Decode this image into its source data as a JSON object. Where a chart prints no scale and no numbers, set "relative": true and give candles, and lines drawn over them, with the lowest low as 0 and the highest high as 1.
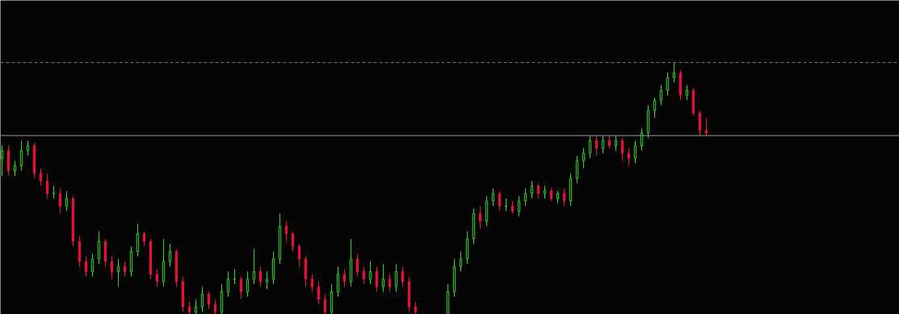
{
  "chart_data": {
    "type": "candlestick",
    "relative": true,
    "grid": false,
    "categories": [
      null,
      null,
      null,
      null,
      null,
      null,
      null,
      null,
      null,
      null,
      null,
      null,
      null,
      null,
      null,
      null,
      null,
      null,
      null,
      null,
      null,
      null,
      null,
      null,
      null,
      null,
      null,
      null,
      null,
      null,
      null,
      null,
      null,
      null,
      null,
      null,
      null,
      null,
      null,
      null,
      null,
      null,
      null,
      null,
      null,
      null,
      null,
      null,
      null,
      null,
      null,
      null,
      null,
      null,
      null,
      null,
      null,
      null,
      null,
      null,
      null,
      null,
      null,
      null,
      null,
      null,
      null,
      null,
      null,
      null,
      null,
      null,
      null,
      null,
      null,
      null,
      null,
      null,
      null,
      null,
      null,
      null,
      null,
      null,
      null,
      null,
      null,
      null,
      null,
      null,
      null,
      null,
      null,
      null,
      null,
      null,
      null,
      null,
      null,
      null,
      null,
      null,
      null,
      null,
      null,
      null,
      null,
      null,
      null,
      null
    ],
    "ohlc": [
      [
        0.62,
        0.67,
        0.55,
        0.65
      ],
      [
        0.65,
        0.67,
        0.55,
        0.57
      ],
      [
        0.57,
        0.61,
        0.55,
        0.59
      ],
      [
        0.59,
        0.69,
        0.57,
        0.65
      ],
      [
        0.65,
        0.69,
        0.63,
        0.67
      ],
      [
        0.67,
        0.68,
        0.54,
        0.56
      ],
      [
        0.56,
        0.58,
        0.51,
        0.53
      ],
      [
        0.53,
        0.56,
        0.46,
        0.48
      ],
      [
        0.48,
        0.51,
        0.46,
        0.48
      ],
      [
        0.48,
        0.5,
        0.4,
        0.43
      ],
      [
        0.43,
        0.49,
        0.41,
        0.46
      ],
      [
        0.46,
        0.47,
        0.27,
        0.29
      ],
      [
        0.29,
        0.31,
        0.19,
        0.21
      ],
      [
        0.21,
        0.23,
        0.15,
        0.17
      ],
      [
        0.17,
        0.24,
        0.15,
        0.22
      ],
      [
        0.22,
        0.33,
        0.2,
        0.29
      ],
      [
        0.29,
        0.3,
        0.19,
        0.21
      ],
      [
        0.21,
        0.23,
        0.14,
        0.17
      ],
      [
        0.17,
        0.22,
        0.11,
        0.19
      ],
      [
        0.19,
        0.21,
        0.15,
        0.17
      ],
      [
        0.17,
        0.27,
        0.15,
        0.25
      ],
      [
        0.25,
        0.36,
        0.23,
        0.32
      ],
      [
        0.32,
        0.33,
        0.27,
        0.29
      ],
      [
        0.29,
        0.3,
        0.14,
        0.16
      ],
      [
        0.16,
        0.18,
        0.11,
        0.13
      ],
      [
        0.13,
        0.3,
        0.11,
        0.21
      ],
      [
        0.21,
        0.28,
        0.19,
        0.25
      ],
      [
        0.25,
        0.26,
        0.11,
        0.13
      ],
      [
        0.13,
        0.15,
        0.01,
        0.03
      ],
      [
        0.03,
        0.05,
        0.0,
        0.01
      ],
      [
        0.01,
        0.06,
        0.0,
        0.03
      ],
      [
        0.03,
        0.11,
        0.01,
        0.08
      ],
      [
        0.08,
        0.09,
        0.02,
        0.04
      ],
      [
        0.04,
        0.06,
        0.0,
        0.01
      ],
      [
        0.01,
        0.12,
        0.0,
        0.09
      ],
      [
        0.09,
        0.17,
        0.07,
        0.14
      ],
      [
        0.14,
        0.18,
        0.12,
        0.14
      ],
      [
        0.14,
        0.15,
        0.06,
        0.09
      ],
      [
        0.09,
        0.17,
        0.07,
        0.14
      ],
      [
        0.14,
        0.26,
        0.12,
        0.17
      ],
      [
        0.17,
        0.19,
        0.11,
        0.13
      ],
      [
        0.13,
        0.17,
        0.1,
        0.14
      ],
      [
        0.14,
        0.25,
        0.12,
        0.22
      ],
      [
        0.22,
        0.4,
        0.2,
        0.35
      ],
      [
        0.35,
        0.37,
        0.29,
        0.32
      ],
      [
        0.32,
        0.33,
        0.25,
        0.27
      ],
      [
        0.27,
        0.28,
        0.19,
        0.22
      ],
      [
        0.22,
        0.23,
        0.11,
        0.14
      ],
      [
        0.14,
        0.16,
        0.09,
        0.11
      ],
      [
        0.11,
        0.13,
        0.04,
        0.06
      ],
      [
        0.06,
        0.08,
        0.0,
        0.01
      ],
      [
        0.01,
        0.12,
        0.0,
        0.09
      ],
      [
        0.09,
        0.19,
        0.07,
        0.16
      ],
      [
        0.16,
        0.18,
        0.11,
        0.13
      ],
      [
        0.13,
        0.3,
        0.11,
        0.22
      ],
      [
        0.22,
        0.24,
        0.15,
        0.17
      ],
      [
        0.17,
        0.19,
        0.12,
        0.14
      ],
      [
        0.14,
        0.21,
        0.12,
        0.17
      ],
      [
        0.17,
        0.19,
        0.09,
        0.11
      ],
      [
        0.11,
        0.2,
        0.09,
        0.14
      ],
      [
        0.14,
        0.16,
        0.09,
        0.11
      ],
      [
        0.11,
        0.2,
        0.09,
        0.17
      ],
      [
        0.17,
        0.19,
        0.11,
        0.13
      ],
      [
        0.13,
        0.15,
        0.01,
        0.03
      ],
      [
        0.03,
        0.05,
        0.0,
        0.01
      ],
      null,
      null,
      null,
      null,
      [
        0.0,
        0.12,
        0.0,
        0.09
      ],
      [
        0.09,
        0.22,
        0.07,
        0.19
      ],
      [
        0.19,
        0.25,
        0.17,
        0.22
      ],
      [
        0.22,
        0.33,
        0.2,
        0.3
      ],
      [
        0.3,
        0.42,
        0.28,
        0.4
      ],
      [
        0.4,
        0.43,
        0.34,
        0.37
      ],
      [
        0.37,
        0.47,
        0.35,
        0.45
      ],
      [
        0.45,
        0.5,
        0.43,
        0.48
      ],
      [
        0.48,
        0.49,
        0.41,
        0.43
      ],
      [
        0.43,
        0.46,
        0.41,
        0.43
      ],
      [
        0.43,
        0.45,
        0.4,
        0.41
      ],
      [
        0.41,
        0.47,
        0.39,
        0.45
      ],
      [
        0.45,
        0.5,
        0.43,
        0.48
      ],
      [
        0.48,
        0.53,
        0.46,
        0.51
      ],
      [
        0.51,
        0.52,
        0.46,
        0.48
      ],
      [
        0.48,
        0.51,
        0.46,
        0.49
      ],
      [
        0.49,
        0.5,
        0.45,
        0.46
      ],
      [
        0.46,
        0.49,
        0.44,
        0.48
      ],
      [
        0.48,
        0.5,
        0.43,
        0.45
      ],
      [
        0.45,
        0.56,
        0.43,
        0.54
      ],
      [
        0.54,
        0.63,
        0.52,
        0.61
      ],
      [
        0.61,
        0.66,
        0.58,
        0.64
      ],
      [
        0.64,
        0.71,
        0.62,
        0.69
      ],
      [
        0.69,
        0.71,
        0.63,
        0.66
      ],
      [
        0.66,
        0.71,
        0.64,
        0.69
      ],
      [
        0.69,
        0.71,
        0.66,
        0.67
      ],
      [
        0.67,
        0.71,
        0.65,
        0.69
      ],
      [
        0.69,
        0.7,
        0.61,
        0.64
      ],
      [
        0.64,
        0.66,
        0.59,
        0.62
      ],
      [
        0.62,
        0.69,
        0.6,
        0.67
      ],
      [
        0.67,
        0.74,
        0.65,
        0.72
      ],
      [
        0.72,
        0.83,
        0.7,
        0.81
      ],
      [
        0.81,
        0.86,
        0.78,
        0.85
      ],
      [
        0.85,
        0.91,
        0.83,
        0.89
      ],
      [
        0.89,
        0.96,
        0.87,
        0.94
      ],
      [
        0.94,
        1.0,
        0.92,
        0.96
      ],
      [
        0.96,
        0.97,
        0.85,
        0.87
      ],
      [
        0.87,
        0.91,
        0.85,
        0.89
      ],
      [
        0.89,
        0.9,
        0.79,
        0.8
      ],
      [
        0.8,
        0.81,
        0.71,
        0.73
      ],
      [
        0.73,
        0.78,
        0.71,
        0.72
      ]
    ],
    "colors": [
      "#33dd22",
      "#e8143c",
      "#33dd22",
      "#33dd22",
      "#33dd22",
      "#e8143c",
      "#e8143c",
      "#e8143c",
      "#33dd22",
      "#e8143c",
      "#33dd22",
      "#e8143c",
      "#e8143c",
      "#e8143c",
      "#33dd22",
      "#33dd22",
      "#e8143c",
      "#e8143c",
      "#33dd22",
      "#e8143c",
      "#33dd22",
      "#33dd22",
      "#e8143c",
      "#e8143c",
      "#e8143c",
      "#33dd22",
      "#33dd22",
      "#e8143c",
      "#e8143c",
      "#e8143c",
      "#33dd22",
      "#33dd22",
      "#e8143c",
      "#e8143c",
      "#33dd22",
      "#33dd22",
      "#33dd22",
      "#e8143c",
      "#33dd22",
      "#33dd22",
      "#e8143c",
      "#33dd22",
      "#33dd22",
      "#33dd22",
      "#e8143c",
      "#e8143c",
      "#e8143c",
      "#e8143c",
      "#e8143c",
      "#e8143c",
      "#e8143c",
      "#33dd22",
      "#33dd22",
      "#e8143c",
      "#33dd22",
      "#e8143c",
      "#e8143c",
      "#33dd22",
      "#e8143c",
      "#33dd22",
      "#e8143c",
      "#33dd22",
      "#e8143c",
      "#e8143c",
      "#e8143c",
      null,
      null,
      null,
      null,
      "#33dd22",
      "#33dd22",
      "#33dd22",
      "#33dd22",
      "#33dd22",
      "#e8143c",
      "#33dd22",
      "#33dd22",
      "#e8143c",
      "#33dd22",
      "#e8143c",
      "#33dd22",
      "#33dd22",
      "#33dd22",
      "#e8143c",
      "#33dd22",
      "#e8143c",
      "#33dd22",
      "#e8143c",
      "#33dd22",
      "#33dd22",
      "#33dd22",
      "#33dd22",
      "#e8143c",
      "#33dd22",
      "#e8143c",
      "#33dd22",
      "#e8143c",
      "#e8143c",
      "#33dd22",
      "#33dd22",
      "#33dd22",
      "#33dd22",
      "#33dd22",
      "#33dd22",
      "#33dd22",
      "#e8143c",
      "#33dd22",
      "#e8143c",
      "#e8143c",
      "#e8143c"
    ],
    "ref_lines": [
      {
        "axis": "y",
        "value": 1.0,
        "color": "#8c6a8c",
        "line_style": "dashed"
      },
      {
        "axis": "y",
        "value": 0.71,
        "color": "#8a9aa8",
        "line_style": "solid"
      }
    ]
  }
}
